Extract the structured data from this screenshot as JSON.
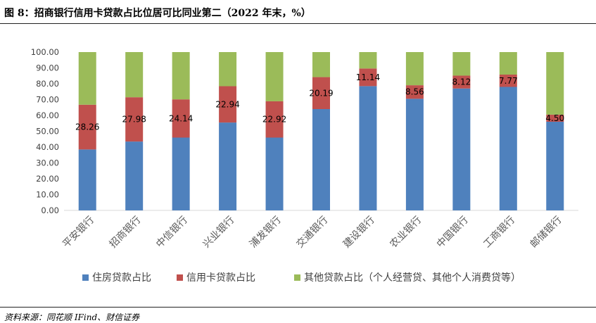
{
  "header": {
    "title": "图 8：招商银行信用卡贷款占比位居可比同业第二（2022 年末，%）"
  },
  "footer": {
    "source": "资料来源：同花顺 IFind、财信证券"
  },
  "chart_data": {
    "type": "bar",
    "stacked": true,
    "categories": [
      "平安银行",
      "招商银行",
      "中信银行",
      "兴业银行",
      "浦发银行",
      "交通银行",
      "建设银行",
      "农业银行",
      "中国银行",
      "工商银行",
      "邮储银行"
    ],
    "series": [
      {
        "name": "住房贷款占比",
        "color": "#4f81bd",
        "values": [
          38.5,
          43.5,
          46.0,
          55.5,
          46.0,
          64.0,
          78.5,
          70.5,
          77.0,
          78.0,
          56.0
        ]
      },
      {
        "name": "信用卡贷款占比",
        "color": "#c0504d",
        "values": [
          28.26,
          27.98,
          24.14,
          22.94,
          22.92,
          20.19,
          11.14,
          8.56,
          8.12,
          7.77,
          4.5
        ],
        "data_labels": [
          "28.26",
          "27.98",
          "24.14",
          "22.94",
          "22.92",
          "20.19",
          "11.14",
          "8.56",
          "8.12",
          "7.77",
          "4.50"
        ]
      },
      {
        "name": "其他贷款占比（个人经营贷、其他个人消费贷等）",
        "color": "#9bbb59",
        "values": [
          33.24,
          28.52,
          29.86,
          21.56,
          31.08,
          15.81,
          10.36,
          20.94,
          14.88,
          14.23,
          39.5
        ]
      }
    ],
    "ylim": [
      0,
      100
    ],
    "yticks": [
      "0.00",
      "10.00",
      "20.00",
      "30.00",
      "40.00",
      "50.00",
      "60.00",
      "70.00",
      "80.00",
      "90.00",
      "100.00"
    ],
    "grid": false,
    "legend_position": "bottom"
  }
}
